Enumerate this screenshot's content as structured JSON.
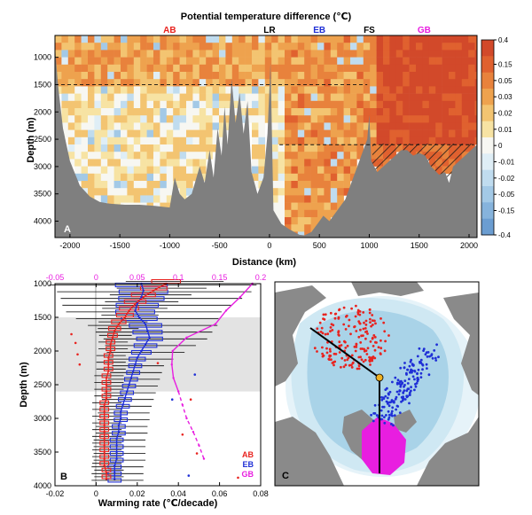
{
  "colors": {
    "ab": "#e8231f",
    "eb": "#1f2fd6",
    "gb": "#e81ee0",
    "terrain": "#7f7f7f",
    "shade": "#e3e3e3",
    "ocean_deep": "#b9dcec",
    "ocean_shallow": "#dff0f8",
    "land": "#8a8a8a"
  },
  "chart_data": [
    {
      "panel": "A",
      "type": "heatmap",
      "title": "Potential temperature difference (℃)",
      "xlabel": "Distance (km)",
      "ylabel": "Depth (m)",
      "xlim": [
        -2150,
        2080
      ],
      "ylim": [
        4300,
        600
      ],
      "xticks": [
        -2000,
        -1500,
        -1000,
        -500,
        0,
        500,
        1000,
        1500,
        2000
      ],
      "yticks": [
        1000,
        1500,
        2000,
        2500,
        3000,
        3500,
        4000
      ],
      "region_labels": [
        {
          "text": "AB",
          "x": -1000,
          "color": "#e8231f"
        },
        {
          "text": "LR",
          "x": 0,
          "color": "#000000"
        },
        {
          "text": "EB",
          "x": 500,
          "color": "#1f2fd6"
        },
        {
          "text": "FS",
          "x": 1000,
          "color": "#000000"
        },
        {
          "text": "GB",
          "x": 1550,
          "color": "#e81ee0"
        }
      ],
      "reference_lines": [
        {
          "depth": 1500,
          "x_from": -2150,
          "x_to": 980
        },
        {
          "depth": 2600,
          "x_from": 100,
          "x_to": 2050
        }
      ],
      "colorbar": {
        "tick_labels": [
          "0.4",
          "0.15",
          "0.05",
          "0.03",
          "0.02",
          "0.01",
          "0",
          "-0.01",
          "-0.02",
          "-0.05",
          "-0.15",
          "-0.4"
        ],
        "colors": [
          "#d2492a",
          "#e0612f",
          "#e8823c",
          "#eea24e",
          "#f3c471",
          "#f7e3a3",
          "#f7f7f2",
          "#dfeef6",
          "#c0dcef",
          "#a3c9e6",
          "#86b3dc",
          "#6b9dd1"
        ]
      },
      "panel_label": "A"
    },
    {
      "panel": "B",
      "type": "line",
      "xlabel": "Warming rate (℃/decade)",
      "ylabel": "Depth (m)",
      "xlim": [
        -0.02,
        0.08
      ],
      "xticks": [
        "-0.02",
        "0",
        "0.02",
        "0.04",
        "0.06",
        "0.08"
      ],
      "top_xlim": [
        -0.05,
        0.2
      ],
      "top_xticks": [
        "-0.05",
        "0",
        "0.05",
        "0.1",
        "0.15",
        "0.2"
      ],
      "ylim": [
        4000,
        1000
      ],
      "yticks": [
        "1000",
        "1500",
        "2000",
        "2500",
        "3000",
        "3500",
        "4000"
      ],
      "shaded_depth_range": [
        1500,
        2600
      ],
      "depths": [
        1000,
        1100,
        1200,
        1300,
        1400,
        1500,
        1600,
        1700,
        1800,
        1900,
        2000,
        2100,
        2200,
        2300,
        2400,
        2500,
        2600,
        2700,
        2800,
        2900,
        3000,
        3100,
        3200,
        3300,
        3400,
        3500,
        3600,
        3700,
        3800,
        3900
      ],
      "series": [
        {
          "name": "AB",
          "color": "#e8231f",
          "values": [
            0.034,
            0.028,
            0.023,
            0.019,
            0.016,
            0.014,
            0.011,
            0.009,
            0.008,
            0.007,
            0.007,
            0.006,
            0.006,
            0.006,
            0.005,
            0.005,
            0.005,
            0.005,
            0.004,
            0.004,
            0.004,
            0.004,
            0.004,
            0.004,
            0.004,
            0.004,
            0.004,
            0.004,
            0.005,
            0.005
          ]
        },
        {
          "name": "EB",
          "color": "#1f2fd6",
          "values": [
            0.022,
            0.023,
            0.022,
            0.02,
            0.019,
            0.021,
            0.024,
            0.025,
            0.026,
            0.024,
            0.022,
            0.02,
            0.019,
            0.018,
            0.017,
            0.016,
            0.015,
            0.014,
            0.013,
            0.012,
            0.012,
            0.011,
            0.011,
            0.01,
            0.01,
            0.01,
            0.01,
            0.009,
            0.009,
            0.009
          ]
        },
        {
          "name": "GB",
          "axis": "top",
          "color": "#e81ee0",
          "depths": [
            1000,
            1200,
            1400,
            1600,
            1800,
            2000,
            2200,
            2400,
            2600,
            2800,
            3000,
            3200,
            3400,
            3600
          ],
          "values": [
            0.19,
            0.175,
            0.158,
            0.145,
            0.11,
            0.093,
            0.092,
            0.094,
            0.1,
            0.105,
            0.11,
            0.118,
            0.125,
            0.131
          ]
        }
      ],
      "legend": [
        "AB",
        "EB",
        "GB"
      ],
      "panel_label": "B"
    },
    {
      "panel": "C",
      "type": "map",
      "panel_label": "C"
    }
  ]
}
